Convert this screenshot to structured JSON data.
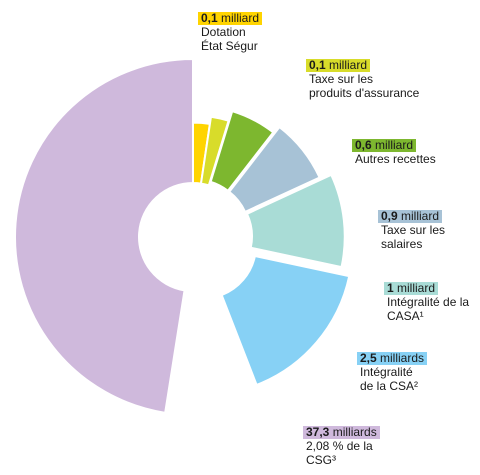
{
  "chart_data": {
    "type": "pie",
    "donut": true,
    "slices": [
      {
        "value": 0.1,
        "amount": "0,1",
        "unit": " milliard",
        "lines": [
          "Dotation",
          "État Ségur"
        ],
        "color": "#ffd400"
      },
      {
        "value": 0.1,
        "amount": "0,1",
        "unit": " milliard",
        "lines": [
          "Taxe sur les",
          "produits d'assurance"
        ],
        "color": "#d8dc2a"
      },
      {
        "value": 0.6,
        "amount": "0,6",
        "unit": " milliard",
        "lines": [
          "Autres recettes"
        ],
        "color": "#7db72f"
      },
      {
        "value": 0.9,
        "amount": "0,9",
        "unit": " milliard",
        "lines": [
          "Taxe sur les",
          "salaires"
        ],
        "color": "#a7c2d6"
      },
      {
        "value": 1,
        "amount": "1",
        "unit": " milliard",
        "lines": [
          "Intégralité de la",
          "CASA¹"
        ],
        "color": "#a9dcd6"
      },
      {
        "value": 2.5,
        "amount": "2,5",
        "unit": " milliards",
        "lines": [
          "Intégralité",
          "de la CSA²"
        ],
        "color": "#87d1f5"
      },
      {
        "value": 37.3,
        "amount": "37,3",
        "unit": " milliards",
        "lines": [
          "2,08 % de la",
          "CSG³"
        ],
        "color": "#cfb9dc"
      }
    ]
  }
}
